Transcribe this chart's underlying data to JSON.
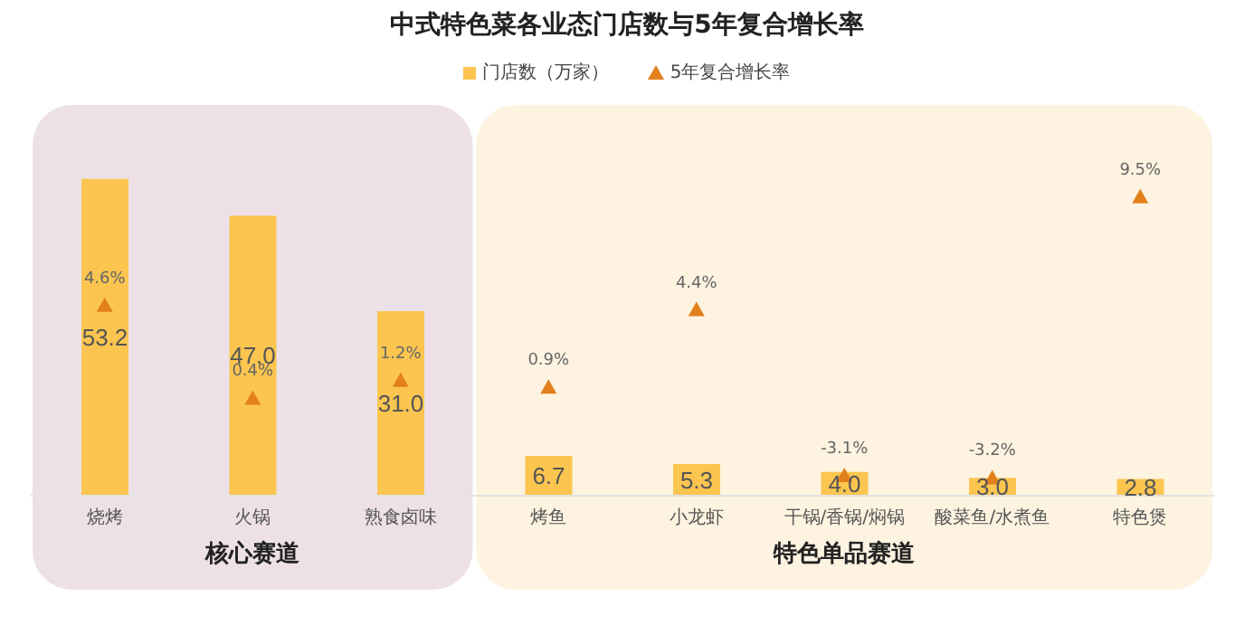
{
  "chart_data": {
    "type": "bar",
    "title": "中式特色菜各业态门店数与5年复合增长率",
    "categories": [
      "烧烤",
      "火锅",
      "熟食卤味",
      "烤鱼",
      "小龙虾",
      "干锅/香锅/焖锅",
      "酸菜鱼/水煮鱼",
      "特色煲"
    ],
    "series": [
      {
        "name": "门店数（万家）",
        "color": "#fbc54f",
        "values": [
          53.2,
          47.0,
          31.0,
          6.7,
          5.3,
          4.0,
          3.0,
          2.8
        ],
        "value_labels": [
          "53.2",
          "47.0",
          "31.0",
          "6.7",
          "5.3",
          "4.0",
          "3.0",
          "2.8"
        ]
      },
      {
        "name": "5年复合增长率",
        "type": "scatter",
        "axis": "y2",
        "marker": "triangle",
        "color": "#e2801c",
        "values": [
          4.6,
          0.4,
          1.2,
          0.9,
          4.4,
          -3.1,
          -3.2,
          9.5
        ],
        "value_labels": [
          "4.6%",
          "0.4%",
          "1.2%",
          "0.9%",
          "4.4%",
          "-3.1%",
          "-3.2%",
          "9.5%"
        ]
      }
    ],
    "ylim": [
      0,
      65
    ],
    "y2lim": [
      -4,
      13.5
    ],
    "tick_labels": "x",
    "grid": false,
    "legend": "top",
    "bands": [
      {
        "axis": "x",
        "from": "烧烤",
        "to": "熟食卤味",
        "label": "核心赛道",
        "color": "#ede1e7"
      },
      {
        "axis": "x",
        "from": "烤鱼",
        "to": "特色煲",
        "label": "特色单品赛道",
        "color": "#fdf3e0"
      }
    ]
  }
}
